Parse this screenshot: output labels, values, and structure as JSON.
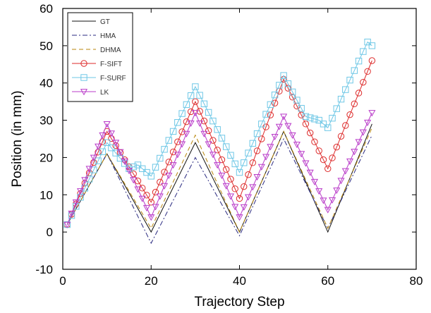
{
  "chart_data": {
    "type": "line",
    "title": "",
    "xlabel": "Trajectory Step",
    "ylabel": "Position (in mm)",
    "xlim": [
      0,
      80
    ],
    "ylim": [
      -10,
      60
    ],
    "xticks": [
      0,
      20,
      40,
      60,
      80
    ],
    "yticks": [
      -10,
      0,
      10,
      20,
      30,
      40,
      50,
      60
    ],
    "x_tick_labels": [
      "0",
      "20",
      "40",
      "60",
      "80"
    ],
    "y_tick_labels": [
      "-10",
      "0",
      "10",
      "20",
      "30",
      "40",
      "50",
      "60"
    ],
    "grid": false,
    "legend_position": "top-left",
    "series": [
      {
        "name": "GT",
        "color": "#111111",
        "dash": "",
        "marker": "none",
        "x": [
          1,
          10,
          20,
          30,
          40,
          50,
          60,
          70
        ],
        "y": [
          2,
          21,
          0,
          24,
          0,
          27,
          0,
          29
        ]
      },
      {
        "name": "HMA",
        "color": "#2a2a80",
        "dash": "7,3,2,3",
        "marker": "none",
        "x": [
          1,
          10,
          20,
          30,
          40,
          50,
          60,
          70
        ],
        "y": [
          2,
          21,
          -3,
          20,
          -1,
          25,
          1,
          26
        ]
      },
      {
        "name": "DHMA",
        "color": "#b8860b",
        "dash": "6,4",
        "marker": "none",
        "x": [
          1,
          10,
          20,
          30,
          40,
          50,
          60,
          70
        ],
        "y": [
          2,
          21,
          1,
          26,
          0,
          27,
          1,
          28
        ]
      },
      {
        "name": "F-SIFT",
        "color": "#dd2a2a",
        "dash": "",
        "marker": "circle",
        "x": [
          1,
          10,
          20,
          30,
          40,
          50,
          60,
          70
        ],
        "y": [
          2,
          27,
          8,
          35,
          9,
          41,
          17,
          46
        ]
      },
      {
        "name": "F-SURF",
        "color": "#6ec7e6",
        "dash": "",
        "marker": "square",
        "x": [
          1,
          10,
          15,
          17,
          20,
          30,
          40,
          50,
          55,
          58,
          60,
          69,
          70
        ],
        "y": [
          2,
          24,
          17,
          18,
          15,
          39,
          16,
          42,
          31,
          30,
          28,
          51,
          50
        ]
      },
      {
        "name": "LK",
        "color": "#b93bc9",
        "dash": "",
        "marker": "triangle-down",
        "x": [
          1,
          10,
          20,
          30,
          40,
          50,
          60,
          70
        ],
        "y": [
          2,
          29,
          4,
          32,
          4,
          31,
          6,
          32
        ]
      }
    ]
  }
}
